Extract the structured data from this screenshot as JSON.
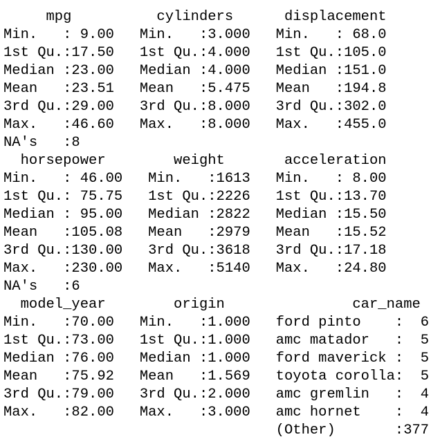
{
  "summary_output": {
    "lines": [
      "     mpg          cylinders      displacement",
      "Min.   : 9.00   Min.   :3.000   Min.   : 68.0",
      "1st Qu.:17.50   1st Qu.:4.000   1st Qu.:105.0",
      "Median :23.00   Median :4.000   Median :151.0",
      "Mean   :23.51   Mean   :5.475   Mean   :194.8",
      "3rd Qu.:29.00   3rd Qu.:8.000   3rd Qu.:302.0",
      "Max.   :46.60   Max.   :8.000   Max.   :455.0",
      "NA's   :8",
      "  horsepower        weight       acceleration",
      "Min.   : 46.00   Min.   :1613   Min.   : 8.00",
      "1st Qu.: 75.75   1st Qu.:2226   1st Qu.:13.70",
      "Median : 95.00   Median :2822   Median :15.50",
      "Mean   :105.08   Mean   :2979   Mean   :15.52",
      "3rd Qu.:130.00   3rd Qu.:3618   3rd Qu.:17.18",
      "Max.   :230.00   Max.   :5140   Max.   :24.80",
      "NA's   :6",
      "  model_year        origin               car_name",
      "Min.   :70.00   Min.   :1.000   ford pinto    :  6",
      "1st Qu.:73.00   1st Qu.:1.000   amc matador   :  5",
      "Median :76.00   Median :1.000   ford maverick :  5",
      "Mean   :75.92   Mean   :1.569   toyota corolla:  5",
      "3rd Qu.:79.00   3rd Qu.:2.000   amc gremlin   :  4",
      "Max.   :82.00   Max.   :3.000   amc hornet    :  4",
      "                                (Other)       :377"
    ]
  }
}
